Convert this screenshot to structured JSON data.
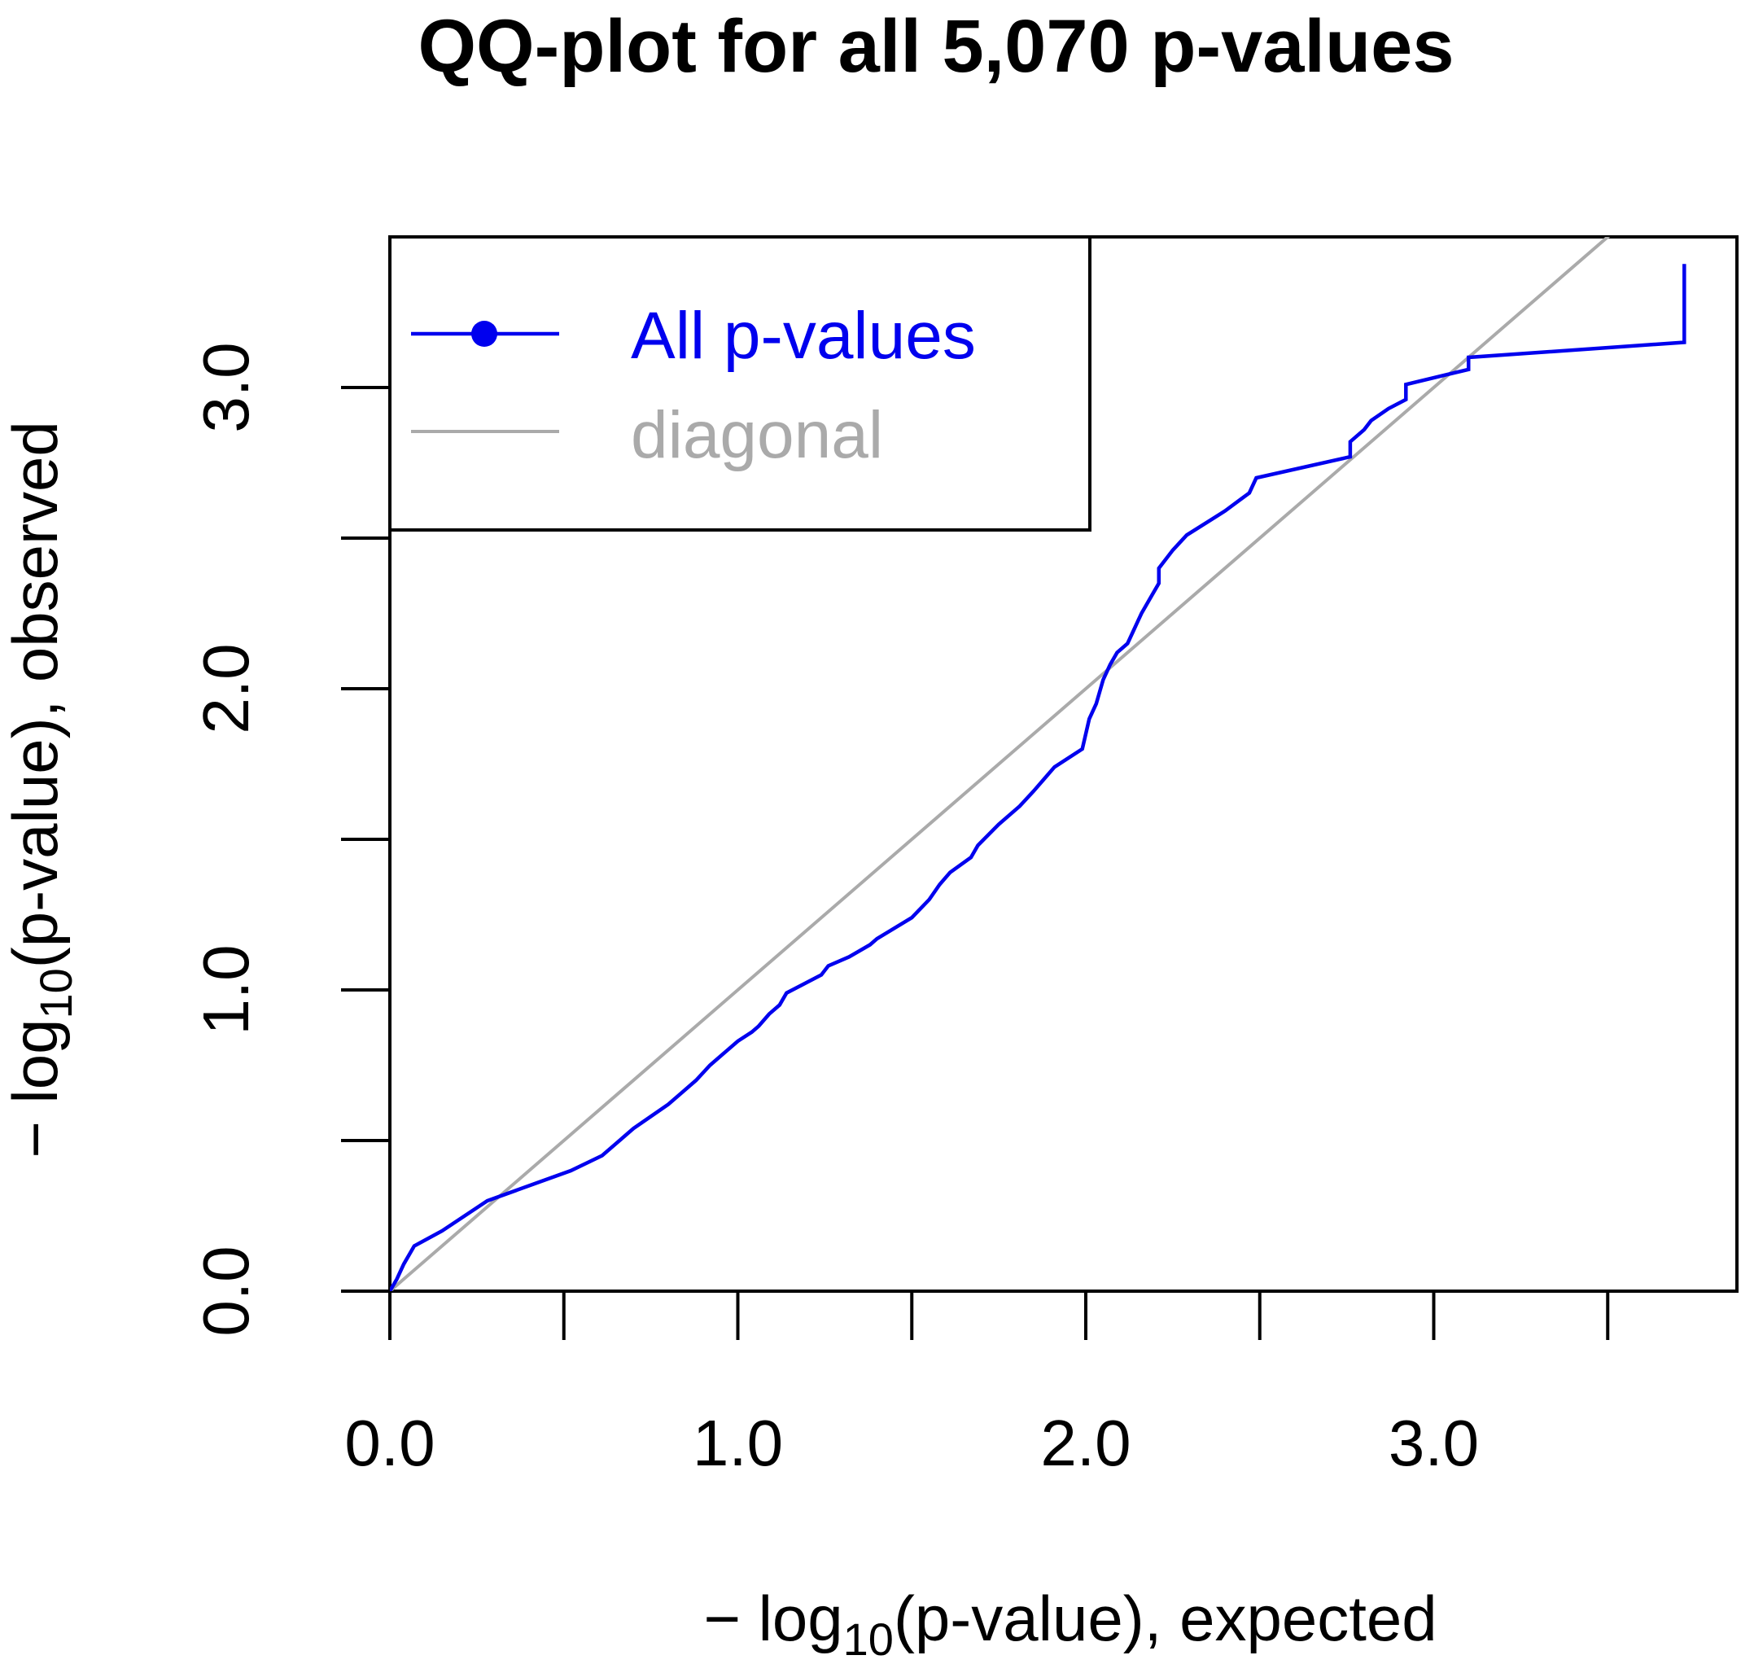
{
  "chart_data": {
    "type": "line",
    "title": "QQ-plot for all 5,070 p-values",
    "xlabel": {
      "prefix": "− log",
      "sub": "10",
      "suffix": "(p-value), expected"
    },
    "ylabel": {
      "prefix": "− log",
      "sub": "10",
      "suffix": "(p-value), observed"
    },
    "xlim": [
      0,
      3.88
    ],
    "ylim": [
      0,
      3.5
    ],
    "x_ticks": [
      0,
      0.5,
      1.0,
      1.5,
      2.0,
      2.5,
      3.0,
      3.5
    ],
    "x_tick_labels": [
      {
        "value": 0,
        "label": "0.0"
      },
      {
        "value": 1.0,
        "label": "1.0"
      },
      {
        "value": 2.0,
        "label": "2.0"
      },
      {
        "value": 3.0,
        "label": "3.0"
      }
    ],
    "y_ticks": [
      0,
      0.5,
      1.0,
      1.5,
      2.0,
      2.5,
      3.0
    ],
    "y_tick_labels": [
      {
        "value": 0,
        "label": "0.0"
      },
      {
        "value": 1.0,
        "label": "1.0"
      },
      {
        "value": 2.0,
        "label": "2.0"
      },
      {
        "value": 3.0,
        "label": "3.0"
      }
    ],
    "grid": false,
    "legend": {
      "position": "top-left",
      "entries": [
        {
          "name": "All p-values",
          "color": "#0000ee",
          "style": "line-point"
        },
        {
          "name": "diagonal",
          "color": "#aaaaaa",
          "style": "line"
        }
      ]
    },
    "series": [
      {
        "name": "All p-values",
        "color": "#0000ee",
        "x": [
          0,
          0.02,
          0.04,
          0.07,
          0.15,
          0.28,
          0.52,
          0.61,
          0.65,
          0.7,
          0.75,
          0.8,
          0.84,
          0.88,
          0.92,
          0.96,
          1.0,
          1.04,
          1.06,
          1.09,
          1.12,
          1.14,
          1.19,
          1.24,
          1.26,
          1.32,
          1.38,
          1.4,
          1.5,
          1.55,
          1.58,
          1.61,
          1.67,
          1.69,
          1.75,
          1.81,
          1.85,
          1.88,
          1.91,
          1.99,
          2.01,
          2.03,
          2.05,
          2.07,
          2.09,
          2.12,
          2.14,
          2.16,
          2.19,
          2.21,
          2.21,
          2.25,
          2.29,
          2.4,
          2.47,
          2.49,
          2.49,
          2.76,
          2.76,
          2.8,
          2.82,
          2.87,
          2.92,
          2.92,
          3.1,
          3.1,
          3.72,
          3.72
        ],
        "y": [
          0,
          0.04,
          0.09,
          0.15,
          0.2,
          0.3,
          0.4,
          0.45,
          0.49,
          0.54,
          0.58,
          0.62,
          0.66,
          0.7,
          0.75,
          0.79,
          0.83,
          0.86,
          0.88,
          0.92,
          0.95,
          0.99,
          1.02,
          1.05,
          1.08,
          1.11,
          1.15,
          1.17,
          1.24,
          1.3,
          1.35,
          1.39,
          1.44,
          1.48,
          1.55,
          1.61,
          1.66,
          1.7,
          1.74,
          1.8,
          1.9,
          1.95,
          2.03,
          2.08,
          2.12,
          2.15,
          2.2,
          2.25,
          2.31,
          2.35,
          2.4,
          2.46,
          2.51,
          2.59,
          2.65,
          2.7,
          2.7,
          2.77,
          2.82,
          2.86,
          2.89,
          2.93,
          2.96,
          3.01,
          3.06,
          3.1,
          3.15,
          3.41
        ]
      },
      {
        "name": "diagonal",
        "color": "#aaaaaa",
        "x": [
          0,
          3.55
        ],
        "y": [
          0,
          3.55
        ]
      }
    ]
  }
}
